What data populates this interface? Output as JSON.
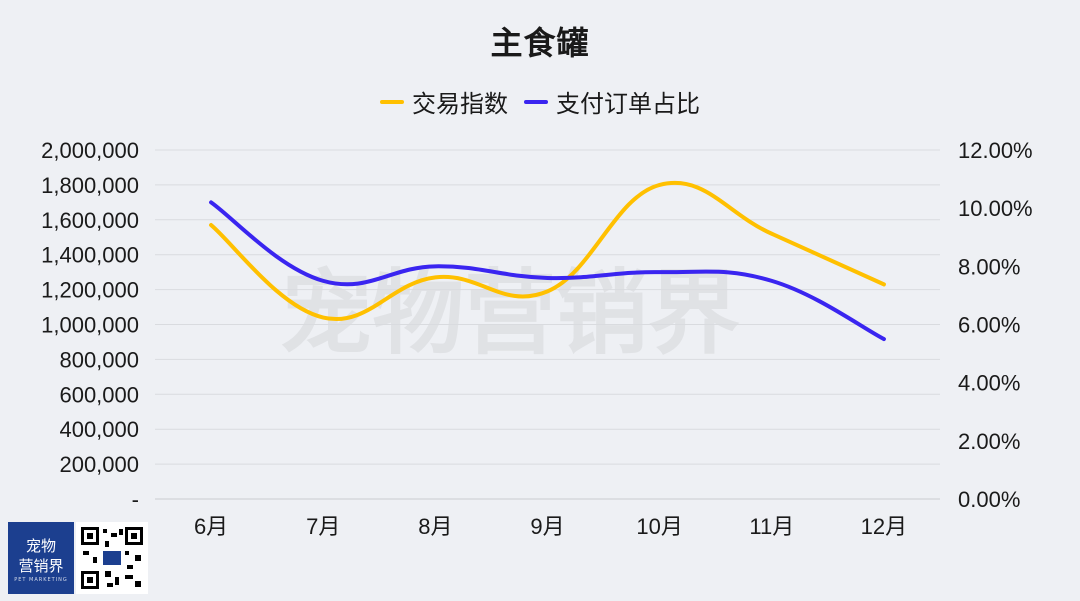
{
  "chart_data": {
    "type": "line",
    "title": "主食罐",
    "categories": [
      "6月",
      "7月",
      "8月",
      "9月",
      "10月",
      "11月",
      "12月"
    ],
    "series": [
      {
        "name": "交易指数",
        "axis": "left",
        "color": "#ffc000",
        "values": [
          1570000,
          1040000,
          1270000,
          1190000,
          1800000,
          1520000,
          1230000
        ]
      },
      {
        "name": "支付订单占比",
        "axis": "right",
        "color": "#3a25f0",
        "values": [
          10.2,
          7.5,
          8.0,
          7.6,
          7.8,
          7.5,
          5.5
        ]
      }
    ],
    "left_axis": {
      "ylim": [
        0,
        2000000
      ],
      "ticks": [
        "2,000,000",
        "1,800,000",
        "1,600,000",
        "1,400,000",
        "1,200,000",
        "1,000,000",
        "800,000",
        "600,000",
        "400,000",
        "200,000",
        "-"
      ]
    },
    "right_axis": {
      "ylim": [
        0,
        12
      ],
      "ticks": [
        "12.00%",
        "10.00%",
        "8.00%",
        "6.00%",
        "4.00%",
        "2.00%",
        "0.00%"
      ]
    },
    "grid": true,
    "legend_position": "top-center"
  },
  "watermark": "宠物营销界",
  "logo": {
    "line1": "宠物",
    "line2": "营销界",
    "tagline": "PET MARKETING"
  }
}
